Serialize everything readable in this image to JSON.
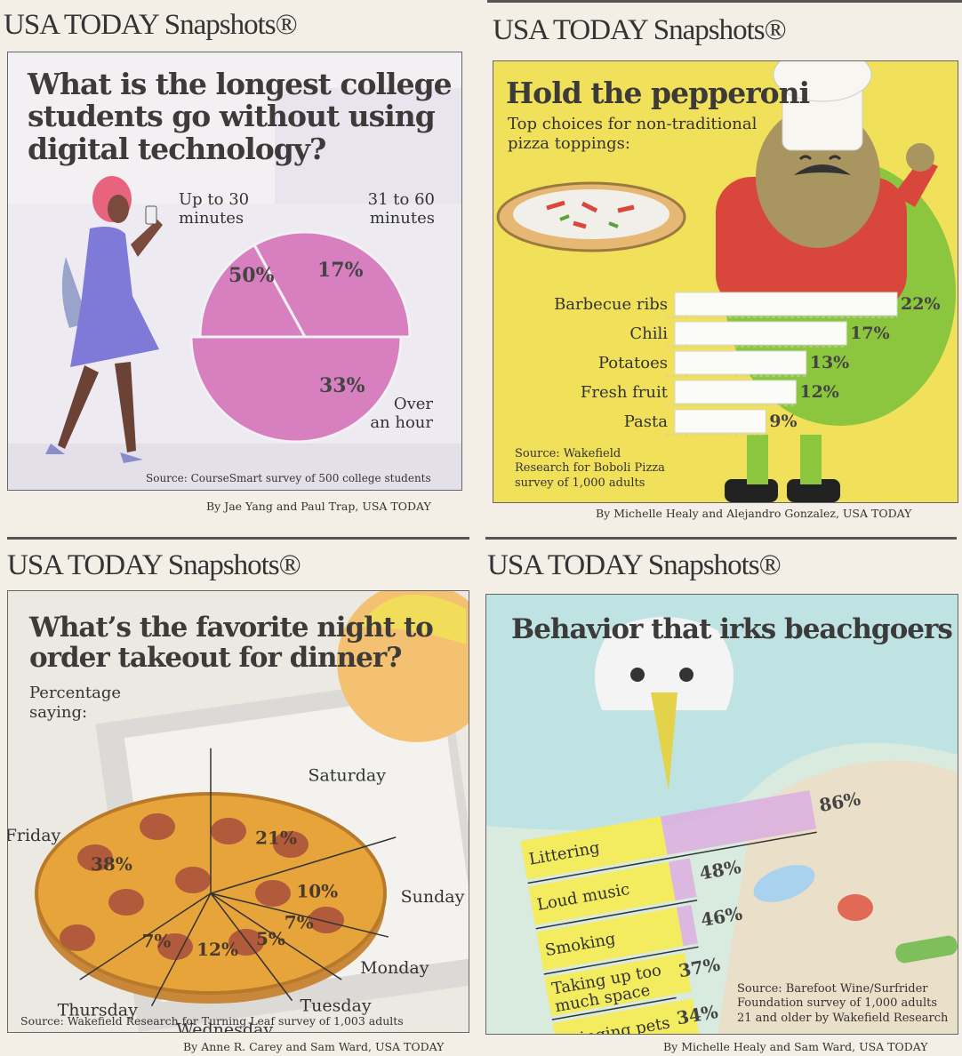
{
  "brand": "USA TODAY Snapshots®",
  "colors": {
    "paper": "#f3efe6",
    "pie_pink": "#d77fbf",
    "yellow_bg": "#f0e05a",
    "bar_white": "#fbfbf7",
    "green": "#8cc63f",
    "pizza": "#e7a43a",
    "pepperoni": "#b25a3c",
    "beach_yellow": "#f3ec5f",
    "beach_pink": "#dcaee0"
  },
  "panels": [
    {
      "id": "digital",
      "title": "What is the longest college students go without using digital technology?",
      "title_lines": [
        "What is the longest college",
        "students go without using",
        "digital technology?"
      ],
      "labels": {
        "up_to_30": [
          "Up to 30",
          "minutes"
        ],
        "to_60": [
          "31 to 60",
          "minutes"
        ],
        "over_hour": [
          "Over",
          "an hour"
        ]
      },
      "source": "Source: CourseSmart survey of 500 college students",
      "credit": "By Jae Yang and Paul Trap, USA TODAY"
    },
    {
      "id": "pepperoni",
      "title": "Hold the pepperoni",
      "subtitle_lines": [
        "Top choices for non-traditional",
        "pizza toppings:"
      ],
      "source_lines": [
        "Source: Wakefield",
        "Research for Boboli Pizza",
        "survey of 1,000 adults"
      ],
      "credit": "By Michelle Healy and Alejandro Gonzalez, USA TODAY"
    },
    {
      "id": "takeout",
      "title_lines": [
        "What’s the favorite night to",
        "order takeout for dinner?"
      ],
      "subtitle_lines": [
        "Percentage",
        "saying:"
      ],
      "source": "Source: Wakefield Research for Turning Leaf survey of 1,003 adults",
      "credit": "By Anne R. Carey and Sam Ward, USA TODAY"
    },
    {
      "id": "beach",
      "title": "Behavior that irks beachgoers",
      "source_lines": [
        "Source: Barefoot Wine/Surfrider",
        "Foundation survey of 1,000 adults",
        "21 and older by Wakefield Research"
      ],
      "credit": "By Michelle Healy and Sam Ward, USA TODAY"
    }
  ],
  "chart_data": [
    {
      "type": "pie",
      "title": "What is the longest college students go without using digital technology?",
      "categories": [
        "Up to 30 minutes",
        "31 to 60 minutes",
        "Over an hour"
      ],
      "values": [
        50,
        17,
        33
      ],
      "value_labels": [
        "50%",
        "17%",
        "33%"
      ]
    },
    {
      "type": "bar",
      "title": "Hold the pepperoni",
      "subtitle": "Top choices for non-traditional pizza toppings:",
      "categories": [
        "Barbecue ribs",
        "Chili",
        "Potatoes",
        "Fresh fruit",
        "Pasta"
      ],
      "values": [
        22,
        17,
        13,
        12,
        9
      ],
      "value_labels": [
        "22%",
        "17%",
        "13%",
        "12%",
        "9%"
      ]
    },
    {
      "type": "pie",
      "title": "What’s the favorite night to order takeout for dinner?",
      "subtitle": "Percentage saying:",
      "categories": [
        "Friday",
        "Saturday",
        "Sunday",
        "Monday",
        "Tuesday",
        "Wednesday",
        "Thursday"
      ],
      "values": [
        38,
        21,
        10,
        7,
        5,
        12,
        7
      ],
      "value_labels": [
        "38%",
        "21%",
        "10%",
        "7%",
        "5%",
        "12%",
        "7%"
      ]
    },
    {
      "type": "bar",
      "title": "Behavior that irks beachgoers",
      "categories": [
        "Littering",
        "Loud music",
        "Smoking",
        "Taking up too much space",
        "Bringing pets"
      ],
      "category_lines": [
        [
          "Littering"
        ],
        [
          "Loud music"
        ],
        [
          "Smoking"
        ],
        [
          "Taking up too",
          "much space"
        ],
        [
          "Bringing pets"
        ]
      ],
      "values": [
        86,
        48,
        46,
        37,
        34
      ],
      "value_labels": [
        "86%",
        "48%",
        "46%",
        "37%",
        "34%"
      ]
    }
  ]
}
